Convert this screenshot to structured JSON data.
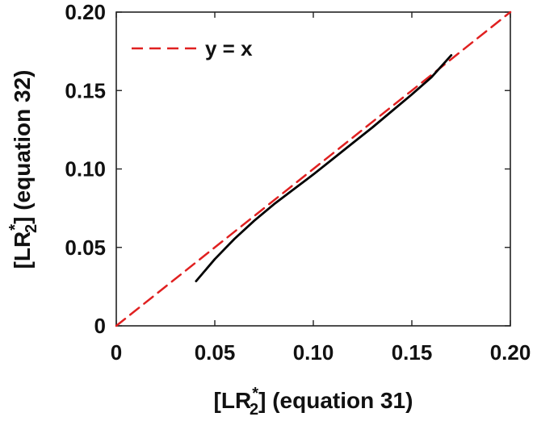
{
  "chart_data": {
    "type": "line",
    "title": "",
    "xlabel": {
      "prefix": "[LR",
      "sub": "2",
      "sup": "*",
      "suffix": "] (equation 31)"
    },
    "ylabel": {
      "prefix": "[LR",
      "sub": "2",
      "sup": "*",
      "suffix": "] (equation 32)"
    },
    "xlim": [
      0,
      0.2
    ],
    "ylim": [
      0,
      0.2
    ],
    "x_ticks": [
      0,
      0.05,
      0.1,
      0.15,
      0.2
    ],
    "x_tick_labels": [
      "0",
      "0.05",
      "0.10",
      "0.15",
      "0.20"
    ],
    "y_ticks": [
      0,
      0.05,
      0.1,
      0.15,
      0.2
    ],
    "y_tick_labels": [
      "0",
      "0.05",
      "0.10",
      "0.15",
      "0.20"
    ],
    "grid": false,
    "legend_position": "top-left",
    "series": [
      {
        "name": "y = x",
        "color": "#e02020",
        "dash": true,
        "x": [
          0,
          0.2
        ],
        "y": [
          0,
          0.2
        ]
      },
      {
        "name": "",
        "color": "#000000",
        "dash": false,
        "x": [
          0.0405,
          0.05,
          0.06,
          0.07,
          0.08,
          0.09,
          0.1,
          0.11,
          0.12,
          0.13,
          0.14,
          0.15,
          0.16,
          0.17
        ],
        "y": [
          0.0285,
          0.0425,
          0.0555,
          0.067,
          0.0775,
          0.087,
          0.0965,
          0.1065,
          0.1165,
          0.1265,
          0.137,
          0.1475,
          0.1585,
          0.1725
        ]
      }
    ]
  }
}
